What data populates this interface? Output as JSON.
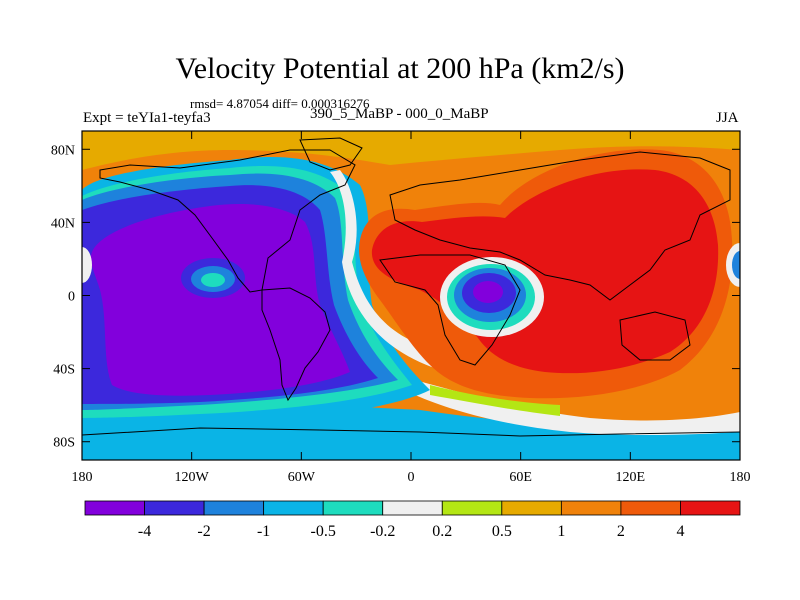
{
  "map": {
    "title": "Velocity Potential at 200 hPa (km2/s)",
    "stats": "rmsd= 4.87054 diff= 0.000316276",
    "experiment": "Expt = teYIa1-teyfa3",
    "periods": "390_5_MaBP - 000_0_MaBP",
    "season": "JJA",
    "lat_ticks": [
      "80N",
      "40N",
      "0",
      "40S",
      "80S"
    ],
    "lat_values": [
      80,
      40,
      0,
      -40,
      -80
    ],
    "lon_ticks": [
      "180",
      "120W",
      "60W",
      "0",
      "60E",
      "120E",
      "180"
    ],
    "lon_values": [
      -180,
      -120,
      -60,
      0,
      60,
      120,
      180
    ],
    "lat_range": [
      -90,
      90
    ],
    "lon_range": [
      -180,
      180
    ]
  },
  "colorbar": {
    "colors": [
      "#8200dc",
      "#3c28dc",
      "#1e82dc",
      "#0ab4e6",
      "#1edcbe",
      "#f0f0f0",
      "#b4e614",
      "#e6aa00",
      "#f0820a",
      "#ef5a0a",
      "#e61414"
    ],
    "labels": [
      "-4",
      "-2",
      "-1",
      "-0.5",
      "-0.2",
      "0.2",
      "0.5",
      "1",
      "2",
      "4"
    ]
  }
}
